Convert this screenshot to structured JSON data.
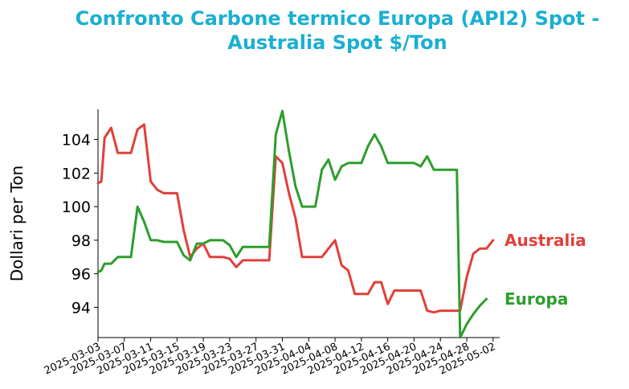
{
  "chart_data": {
    "type": "line",
    "title_line1": "Confronto Carbone termico Europa (API2) Spot -",
    "title_line2": "Australia Spot $/Ton",
    "title_color": "#1AAFD0",
    "xlabel": "",
    "ylabel": "Dollari per Ton",
    "xlim": [
      "2025-03-03",
      "2025-05-03"
    ],
    "ylim": [
      92.2,
      105.8
    ],
    "yticks": [
      94,
      96,
      98,
      100,
      102,
      104
    ],
    "xticks": [
      "2025-03-03",
      "2025-03-07",
      "2025-03-11",
      "2025-03-15",
      "2025-03-19",
      "2025-03-23",
      "2025-03-27",
      "2025-03-31",
      "2025-04-04",
      "2025-04-08",
      "2025-04-12",
      "2025-04-16",
      "2025-04-20",
      "2025-04-24",
      "2025-04-28",
      "2025-05-02"
    ],
    "grid": false,
    "legend": "end-of-line labels",
    "series": [
      {
        "name": "Australia",
        "color": "#E0403A",
        "points": [
          [
            "2025-03-03",
            101.4
          ],
          [
            "2025-03-03T12:00",
            101.5
          ],
          [
            "2025-03-04",
            104.1
          ],
          [
            "2025-03-05",
            104.7
          ],
          [
            "2025-03-06",
            103.2
          ],
          [
            "2025-03-07",
            103.2
          ],
          [
            "2025-03-08",
            103.2
          ],
          [
            "2025-03-09",
            104.6
          ],
          [
            "2025-03-10",
            104.9
          ],
          [
            "2025-03-11",
            101.5
          ],
          [
            "2025-03-12",
            101.0
          ],
          [
            "2025-03-13",
            100.8
          ],
          [
            "2025-03-14",
            100.8
          ],
          [
            "2025-03-15",
            100.8
          ],
          [
            "2025-03-16",
            98.6
          ],
          [
            "2025-03-17",
            97.0
          ],
          [
            "2025-03-18",
            97.5
          ],
          [
            "2025-03-19",
            97.8
          ],
          [
            "2025-03-20",
            97.0
          ],
          [
            "2025-03-21",
            97.0
          ],
          [
            "2025-03-22",
            97.0
          ],
          [
            "2025-03-23",
            96.9
          ],
          [
            "2025-03-24",
            96.4
          ],
          [
            "2025-03-25",
            96.8
          ],
          [
            "2025-03-26",
            96.8
          ],
          [
            "2025-03-27",
            96.8
          ],
          [
            "2025-03-28",
            96.8
          ],
          [
            "2025-03-29",
            96.8
          ],
          [
            "2025-03-30",
            103.0
          ],
          [
            "2025-03-31",
            102.6
          ],
          [
            "2025-04-01",
            100.8
          ],
          [
            "2025-04-02",
            99.3
          ],
          [
            "2025-04-03",
            97.0
          ],
          [
            "2025-04-04",
            97.0
          ],
          [
            "2025-04-05",
            97.0
          ],
          [
            "2025-04-06",
            97.0
          ],
          [
            "2025-04-07",
            97.5
          ],
          [
            "2025-04-08",
            98.0
          ],
          [
            "2025-04-09",
            96.5
          ],
          [
            "2025-04-10",
            96.2
          ],
          [
            "2025-04-11",
            94.8
          ],
          [
            "2025-04-12",
            94.8
          ],
          [
            "2025-04-13",
            94.8
          ],
          [
            "2025-04-14",
            95.5
          ],
          [
            "2025-04-15",
            95.5
          ],
          [
            "2025-04-16",
            94.2
          ],
          [
            "2025-04-17",
            95.0
          ],
          [
            "2025-04-18",
            95.0
          ],
          [
            "2025-04-19",
            95.0
          ],
          [
            "2025-04-20",
            95.0
          ],
          [
            "2025-04-21",
            95.0
          ],
          [
            "2025-04-22",
            93.8
          ],
          [
            "2025-04-23",
            93.7
          ],
          [
            "2025-04-24",
            93.8
          ],
          [
            "2025-04-25",
            93.8
          ],
          [
            "2025-04-26",
            93.8
          ],
          [
            "2025-04-27",
            93.8
          ],
          [
            "2025-04-28",
            95.8
          ],
          [
            "2025-04-29",
            97.2
          ],
          [
            "2025-04-30",
            97.5
          ],
          [
            "2025-05-01",
            97.5
          ],
          [
            "2025-05-02",
            98.0
          ]
        ]
      },
      {
        "name": "Europa",
        "color": "#2C9E2C",
        "points": [
          [
            "2025-03-03",
            96.1
          ],
          [
            "2025-03-03T12:00",
            96.2
          ],
          [
            "2025-03-04",
            96.6
          ],
          [
            "2025-03-05",
            96.6
          ],
          [
            "2025-03-06",
            97.0
          ],
          [
            "2025-03-07",
            97.0
          ],
          [
            "2025-03-08",
            97.0
          ],
          [
            "2025-03-09",
            100.0
          ],
          [
            "2025-03-10",
            99.1
          ],
          [
            "2025-03-11",
            98.0
          ],
          [
            "2025-03-12",
            98.0
          ],
          [
            "2025-03-13",
            97.9
          ],
          [
            "2025-03-14",
            97.9
          ],
          [
            "2025-03-15",
            97.9
          ],
          [
            "2025-03-16",
            97.1
          ],
          [
            "2025-03-17",
            96.8
          ],
          [
            "2025-03-18",
            97.8
          ],
          [
            "2025-03-19",
            97.8
          ],
          [
            "2025-03-20",
            98.0
          ],
          [
            "2025-03-21",
            98.0
          ],
          [
            "2025-03-22",
            98.0
          ],
          [
            "2025-03-23",
            97.7
          ],
          [
            "2025-03-24",
            97.0
          ],
          [
            "2025-03-25",
            97.6
          ],
          [
            "2025-03-26",
            97.6
          ],
          [
            "2025-03-27",
            97.6
          ],
          [
            "2025-03-28",
            97.6
          ],
          [
            "2025-03-29",
            97.6
          ],
          [
            "2025-03-30",
            104.3
          ],
          [
            "2025-03-31",
            105.7
          ],
          [
            "2025-04-01",
            103.3
          ],
          [
            "2025-04-02",
            101.2
          ],
          [
            "2025-04-03",
            100.0
          ],
          [
            "2025-04-04",
            100.0
          ],
          [
            "2025-04-05",
            100.0
          ],
          [
            "2025-04-06",
            102.2
          ],
          [
            "2025-04-07",
            102.8
          ],
          [
            "2025-04-08",
            101.6
          ],
          [
            "2025-04-09",
            102.4
          ],
          [
            "2025-04-10",
            102.6
          ],
          [
            "2025-04-11",
            102.6
          ],
          [
            "2025-04-12",
            102.6
          ],
          [
            "2025-04-13",
            103.6
          ],
          [
            "2025-04-14",
            104.3
          ],
          [
            "2025-04-15",
            103.6
          ],
          [
            "2025-04-16",
            102.6
          ],
          [
            "2025-04-17",
            102.6
          ],
          [
            "2025-04-18",
            102.6
          ],
          [
            "2025-04-19",
            102.6
          ],
          [
            "2025-04-20",
            102.6
          ],
          [
            "2025-04-21",
            102.4
          ],
          [
            "2025-04-22",
            103.0
          ],
          [
            "2025-04-23",
            102.2
          ],
          [
            "2025-04-24",
            102.2
          ],
          [
            "2025-04-25",
            102.2
          ],
          [
            "2025-04-26",
            102.2
          ],
          [
            "2025-04-26T12:00",
            102.2
          ],
          [
            "2025-04-27",
            92.2
          ],
          [
            "2025-04-28",
            93.0
          ],
          [
            "2025-04-29",
            93.6
          ],
          [
            "2025-04-30",
            94.1
          ],
          [
            "2025-05-01",
            94.5
          ]
        ]
      }
    ]
  }
}
